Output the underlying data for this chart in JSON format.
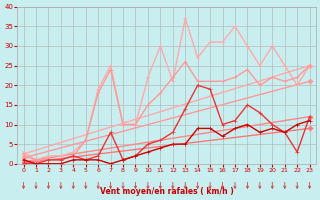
{
  "xlabel": "Vent moyen/en rafales ( km/h )",
  "bg_color": "#c8eef0",
  "grid_color": "#b0b0b0",
  "xlim": [
    -0.5,
    23.5
  ],
  "ylim": [
    0,
    40
  ],
  "yticks": [
    0,
    5,
    10,
    15,
    20,
    25,
    30,
    35,
    40
  ],
  "xticks": [
    0,
    1,
    2,
    3,
    4,
    5,
    6,
    7,
    8,
    9,
    10,
    11,
    12,
    13,
    14,
    15,
    16,
    17,
    18,
    19,
    20,
    21,
    22,
    23
  ],
  "series": [
    {
      "x": [
        0,
        23
      ],
      "y": [
        2.5,
        25
      ],
      "color": "#ffaaaa",
      "lw": 1.0,
      "ms": 2.5,
      "marker": "D"
    },
    {
      "x": [
        0,
        23
      ],
      "y": [
        1.5,
        21
      ],
      "color": "#ff9999",
      "lw": 1.0,
      "ms": 2.5,
      "marker": "D"
    },
    {
      "x": [
        0,
        23
      ],
      "y": [
        0.5,
        12
      ],
      "color": "#ff8888",
      "lw": 1.0,
      "ms": 2.5,
      "marker": "D"
    },
    {
      "x": [
        0,
        23
      ],
      "y": [
        0.2,
        9
      ],
      "color": "#ff7777",
      "lw": 1.0,
      "ms": 2.5,
      "marker": "D"
    },
    {
      "x": [
        0,
        1,
        2,
        3,
        4,
        5,
        6,
        7,
        8,
        9,
        10,
        11,
        12,
        13,
        14,
        15,
        16,
        17,
        18,
        19,
        20,
        21,
        22,
        23
      ],
      "y": [
        3,
        1,
        2,
        2,
        3,
        6,
        19,
        25,
        10,
        10,
        22,
        30,
        21,
        37,
        27,
        31,
        31,
        35,
        30,
        25,
        30,
        25,
        20,
        25
      ],
      "color": "#ffaaaa",
      "lw": 1.0,
      "ms": 2.5,
      "marker": "+"
    },
    {
      "x": [
        0,
        1,
        2,
        3,
        4,
        5,
        6,
        7,
        8,
        9,
        10,
        11,
        12,
        13,
        14,
        15,
        16,
        17,
        18,
        19,
        20,
        21,
        22,
        23
      ],
      "y": [
        2,
        1,
        1,
        1,
        2,
        6,
        18,
        24,
        10,
        10,
        15,
        18,
        22,
        26,
        21,
        21,
        21,
        22,
        24,
        20,
        22,
        21,
        22,
        25
      ],
      "color": "#ff9999",
      "lw": 1.0,
      "ms": 2.5,
      "marker": "+"
    },
    {
      "x": [
        0,
        1,
        2,
        3,
        4,
        5,
        6,
        7,
        8,
        9,
        10,
        11,
        12,
        13,
        14,
        15,
        16,
        17,
        18,
        19,
        20,
        21,
        22,
        23
      ],
      "y": [
        0,
        0,
        1,
        1,
        2,
        1,
        2,
        8,
        1,
        2,
        5,
        6,
        8,
        14,
        20,
        19,
        10,
        11,
        15,
        13,
        10,
        8,
        3,
        12
      ],
      "color": "#ee3333",
      "lw": 1.0,
      "ms": 2.5,
      "marker": "+"
    },
    {
      "x": [
        0,
        1,
        2,
        3,
        4,
        5,
        6,
        7,
        8,
        9,
        10,
        11,
        12,
        13,
        14,
        15,
        16,
        17,
        18,
        19,
        20,
        21,
        22,
        23
      ],
      "y": [
        1,
        0,
        0,
        0,
        1,
        1,
        1,
        0,
        1,
        2,
        3,
        4,
        5,
        5,
        9,
        9,
        7,
        9,
        10,
        8,
        9,
        8,
        10,
        11
      ],
      "color": "#cc0000",
      "lw": 1.0,
      "ms": 2.5,
      "marker": "+"
    }
  ],
  "wind_arrows": [
    0,
    1,
    2,
    3,
    4,
    5,
    6,
    7,
    8,
    9,
    10,
    11,
    12,
    13,
    14,
    15,
    16,
    17,
    18,
    19,
    20,
    21,
    22,
    23
  ]
}
